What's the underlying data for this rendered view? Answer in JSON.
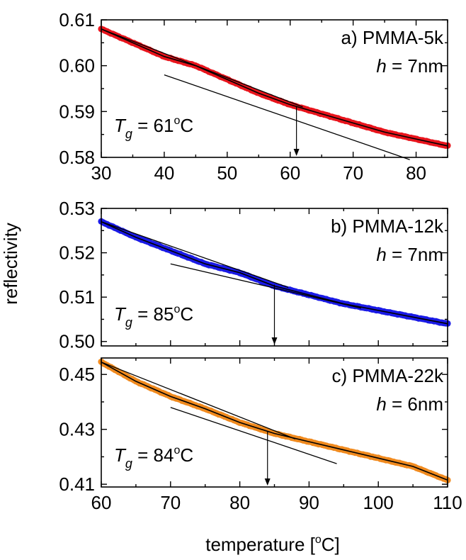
{
  "figure": {
    "ylabel": "reflectivity",
    "xlabel_pre": "temperature [",
    "xlabel_sup": "o",
    "xlabel_post": "C]"
  },
  "chart_data": [
    {
      "type": "scatter",
      "panel_label": "a) PMMA-5k",
      "h_value": " = 7nm",
      "tg_value": " = 61",
      "xlim": [
        30,
        85
      ],
      "ylim": [
        0.58,
        0.61
      ],
      "xticks": [
        30,
        40,
        50,
        60,
        70,
        80
      ],
      "xtick_labels": [
        "30",
        "40",
        "50",
        "60",
        "70",
        "80"
      ],
      "yticks": [
        0.58,
        0.59,
        0.6,
        0.61
      ],
      "ytick_labels": [
        "0.58",
        "0.59",
        "0.60",
        "0.61"
      ],
      "color": "#e8141c",
      "series": [
        {
          "x": [
            30,
            35,
            40,
            45,
            50,
            55,
            60,
            65,
            70,
            75,
            80,
            85
          ],
          "y": [
            0.608,
            0.605,
            0.602,
            0.6,
            0.597,
            0.594,
            0.5915,
            0.5895,
            0.5875,
            0.5855,
            0.584,
            0.5825
          ]
        }
      ],
      "tangent_lines": [
        {
          "x": [
            30,
            62
          ],
          "y": [
            0.608,
            0.591
          ]
        },
        {
          "x": [
            40,
            79
          ],
          "y": [
            0.598,
            0.5795
          ]
        }
      ],
      "tg": 61,
      "tg_y": 0.5911
    },
    {
      "type": "scatter",
      "panel_label": "b) PMMA-12k",
      "h_value": " = 7nm",
      "tg_value": " = 85",
      "xlim": [
        60,
        110
      ],
      "ylim": [
        0.499,
        0.53
      ],
      "xticks": [
        60,
        70,
        80,
        90,
        100,
        110
      ],
      "xtick_labels": [],
      "yticks": [
        0.5,
        0.51,
        0.52,
        0.53
      ],
      "ytick_labels": [
        "0.50",
        "0.51",
        "0.52",
        "0.53"
      ],
      "color": "#1a1ae6",
      "series": [
        {
          "x": [
            60,
            65,
            70,
            75,
            80,
            85,
            90,
            95,
            100,
            105,
            110
          ],
          "y": [
            0.527,
            0.5235,
            0.5205,
            0.5175,
            0.5155,
            0.5125,
            0.5105,
            0.5085,
            0.507,
            0.5055,
            0.504
          ]
        }
      ],
      "tangent_lines": [
        {
          "x": [
            60,
            87
          ],
          "y": [
            0.527,
            0.5122
          ]
        },
        {
          "x": [
            70,
            97.5
          ],
          "y": [
            0.5175,
            0.5075
          ]
        }
      ],
      "tg": 85,
      "tg_y": 0.5128
    },
    {
      "type": "scatter",
      "panel_label": "c) PMMA-22k",
      "h_value": " = 6nm",
      "tg_value": " = 84",
      "xlim": [
        60,
        110
      ],
      "ylim": [
        0.409,
        0.456
      ],
      "xticks": [
        60,
        70,
        80,
        90,
        100,
        110
      ],
      "xtick_labels": [
        "60",
        "70",
        "80",
        "90",
        "100",
        "110"
      ],
      "yticks": [
        0.41,
        0.43,
        0.45
      ],
      "ytick_labels": [
        "0.41",
        "0.43",
        "0.45"
      ],
      "color": "#f08a1e",
      "series": [
        {
          "x": [
            60,
            65,
            70,
            75,
            80,
            85,
            90,
            95,
            100,
            105,
            110
          ],
          "y": [
            0.4545,
            0.4475,
            0.442,
            0.4375,
            0.4325,
            0.4285,
            0.4255,
            0.4225,
            0.4195,
            0.4165,
            0.4115
          ]
        }
      ],
      "tangent_lines": [
        {
          "x": [
            60,
            88
          ],
          "y": [
            0.4545,
            0.4265
          ]
        },
        {
          "x": [
            70,
            94
          ],
          "y": [
            0.438,
            0.4175
          ]
        }
      ],
      "tg": 84,
      "tg_y": 0.4295
    }
  ]
}
